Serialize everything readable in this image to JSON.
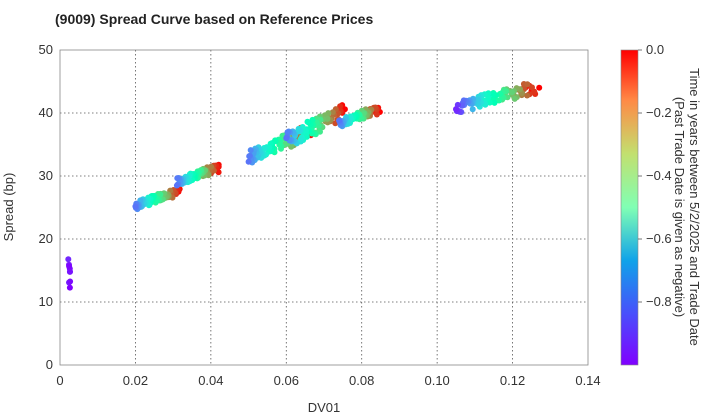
{
  "chart_data": {
    "type": "scatter",
    "title": "(9009)   Spread Curve based on Reference Prices",
    "xlabel": "DV01",
    "ylabel": "Spread (bp)",
    "xlim": [
      0,
      0.14
    ],
    "ylim": [
      0,
      50
    ],
    "xticks": [
      "0",
      "0.02",
      "0.04",
      "0.06",
      "0.08",
      "0.10",
      "0.12",
      "0.14"
    ],
    "yticks": [
      "0",
      "10",
      "20",
      "30",
      "40",
      "50"
    ],
    "grid": true,
    "colorbar": {
      "label": "Time in years between 5/2/2025 and Trade Date\n(Past Trade Date is given as negative)",
      "range": [
        -1.0,
        0.0
      ],
      "ticks": [
        "0.0",
        "−0.2",
        "−0.4",
        "−0.6",
        "−0.8"
      ],
      "colormap": "rainbow"
    },
    "clusters": [
      {
        "x": 0.0025,
        "y_range": [
          12.0,
          17.2
        ],
        "t_range": [
          -1.0,
          -0.95
        ]
      },
      {
        "x_range": [
          0.02,
          0.032
        ],
        "y_range": [
          24.7,
          28.5
        ],
        "t_range": [
          -0.85,
          0.0
        ]
      },
      {
        "x_range": [
          0.031,
          0.0425
        ],
        "y_range": [
          28.5,
          32.2
        ],
        "t_range": [
          -0.85,
          0.0
        ]
      },
      {
        "x_range": [
          0.05,
          0.067
        ],
        "y_range": [
          32.0,
          38.8
        ],
        "t_range": [
          -0.85,
          0.0
        ]
      },
      {
        "x_range": [
          0.06,
          0.076
        ],
        "y_range": [
          34.5,
          42.0
        ],
        "t_range": [
          -0.85,
          0.0
        ]
      },
      {
        "x_range": [
          0.074,
          0.085
        ],
        "y_range": [
          37.8,
          41.5
        ],
        "t_range": [
          -0.85,
          0.0
        ]
      },
      {
        "x_range": [
          0.105,
          0.1275
        ],
        "y_range": [
          40.0,
          45.5
        ],
        "t_range": [
          -0.95,
          0.0
        ]
      }
    ]
  }
}
